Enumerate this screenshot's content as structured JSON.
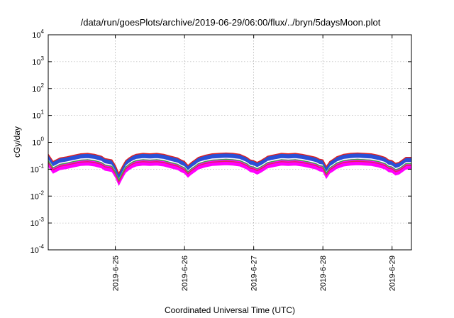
{
  "chart_data": {
    "type": "area",
    "title": "/data/run/goesPlots/archive/2019-06-29/06:00/flux/../bryn/5daysMoon.plot",
    "xlabel": "Coordinated Universal Time (UTC)",
    "ylabel": "cGy/day",
    "yscale": "log",
    "ylim": [
      0.0001,
      10000
    ],
    "xlim": [
      -0.97,
      4.28
    ],
    "y_ticks": [
      {
        "value": 0.0001,
        "base": "10",
        "exp": "-4"
      },
      {
        "value": 0.001,
        "base": "10",
        "exp": "-3"
      },
      {
        "value": 0.01,
        "base": "10",
        "exp": "-2"
      },
      {
        "value": 0.1,
        "base": "10",
        "exp": "-1"
      },
      {
        "value": 1,
        "base": "10",
        "exp": "0"
      },
      {
        "value": 10,
        "base": "10",
        "exp": "1"
      },
      {
        "value": 100,
        "base": "10",
        "exp": "2"
      },
      {
        "value": 1000,
        "base": "10",
        "exp": "3"
      },
      {
        "value": 10000,
        "base": "10",
        "exp": "4"
      }
    ],
    "x_ticks": [
      {
        "value": 0,
        "label": "2019-6-25"
      },
      {
        "value": 1,
        "label": "2019-6-26"
      },
      {
        "value": 2,
        "label": "2019-6-27"
      },
      {
        "value": 3,
        "label": "2019-6-28"
      },
      {
        "value": 4,
        "label": "2019-6-29"
      }
    ],
    "grid": true,
    "series_style": [
      {
        "color": "#ff00ff",
        "kind": "band",
        "lo": 0.5,
        "hi": 0.82
      },
      {
        "color": "#e0245a",
        "kind": "line",
        "scale": 0.68
      },
      {
        "color": "#3cb043",
        "kind": "line",
        "scale": 0.8
      },
      {
        "color": "#00c0c0",
        "kind": "line",
        "scale": 1.0
      },
      {
        "color": "#2a4fd6",
        "kind": "band",
        "lo": 0.95,
        "hi": 1.35
      },
      {
        "color": "#e02020",
        "kind": "line",
        "scale": 1.38
      }
    ],
    "x": [
      -0.97,
      -0.9,
      -0.8,
      -0.7,
      -0.6,
      -0.5,
      -0.4,
      -0.3,
      -0.2,
      -0.15,
      -0.1,
      -0.05,
      0.0,
      0.05,
      0.1,
      0.15,
      0.2,
      0.25,
      0.3,
      0.4,
      0.5,
      0.6,
      0.7,
      0.8,
      0.9,
      0.95,
      1.0,
      1.05,
      1.1,
      1.15,
      1.2,
      1.3,
      1.4,
      1.5,
      1.6,
      1.7,
      1.8,
      1.9,
      1.95,
      2.0,
      2.05,
      2.1,
      2.15,
      2.2,
      2.3,
      2.4,
      2.5,
      2.6,
      2.7,
      2.8,
      2.9,
      2.95,
      3.0,
      3.05,
      3.1,
      3.15,
      3.2,
      3.3,
      3.4,
      3.5,
      3.6,
      3.7,
      3.8,
      3.9,
      3.95,
      4.0,
      4.05,
      4.1,
      4.15,
      4.2,
      4.28
    ],
    "y": [
      0.26,
      0.14,
      0.19,
      0.21,
      0.24,
      0.27,
      0.28,
      0.26,
      0.22,
      0.18,
      0.17,
      0.16,
      0.1,
      0.05,
      0.09,
      0.15,
      0.19,
      0.23,
      0.26,
      0.28,
      0.27,
      0.28,
      0.26,
      0.22,
      0.19,
      0.16,
      0.14,
      0.1,
      0.13,
      0.16,
      0.2,
      0.24,
      0.27,
      0.28,
      0.29,
      0.28,
      0.26,
      0.2,
      0.16,
      0.15,
      0.13,
      0.15,
      0.18,
      0.22,
      0.25,
      0.28,
      0.27,
      0.28,
      0.26,
      0.23,
      0.2,
      0.17,
      0.16,
      0.09,
      0.14,
      0.17,
      0.21,
      0.26,
      0.28,
      0.29,
      0.28,
      0.27,
      0.24,
      0.2,
      0.16,
      0.15,
      0.12,
      0.13,
      0.16,
      0.2,
      0.2
    ]
  }
}
